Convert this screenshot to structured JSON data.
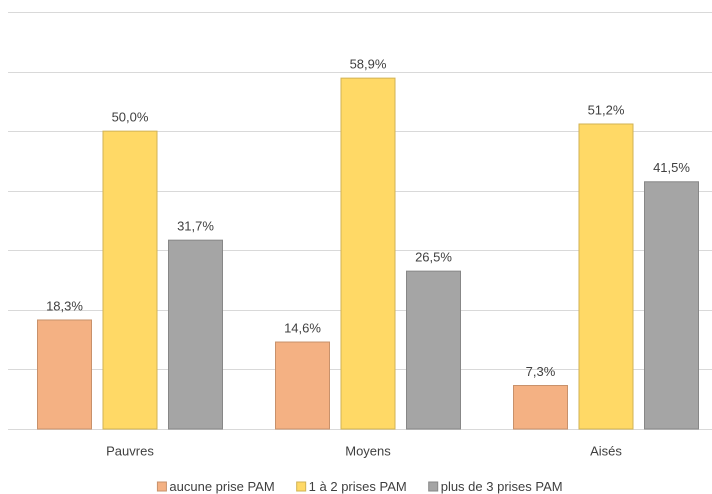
{
  "chart_data": {
    "type": "bar",
    "categories": [
      "Pauvres",
      "Moyens",
      "Aisés"
    ],
    "series": [
      {
        "name": "aucune prise PAM",
        "color": "#f4b183",
        "values": [
          18.3,
          14.6,
          7.3
        ],
        "value_labels": [
          "18,3%",
          "14,6%",
          "7,3%"
        ]
      },
      {
        "name": "1 à 2 prises PAM",
        "color": "#ffd966",
        "values": [
          50.0,
          58.9,
          51.2
        ],
        "value_labels": [
          "50,0%",
          "58,9%",
          "51,2%"
        ]
      },
      {
        "name": "plus de 3 prises PAM",
        "color": "#a5a5a5",
        "values": [
          31.7,
          26.5,
          41.5
        ],
        "value_labels": [
          "31,7%",
          "26,5%",
          "41,5%"
        ]
      }
    ],
    "ylim": [
      0,
      70
    ],
    "yticks": [
      0,
      10,
      20,
      30,
      40,
      50,
      60,
      70
    ],
    "grid": true,
    "legend": "bottom"
  }
}
